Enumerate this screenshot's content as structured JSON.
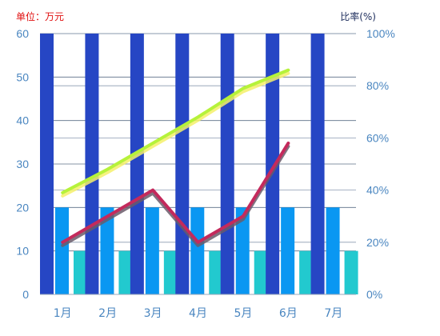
{
  "chart_data": {
    "type": "bar",
    "unit_left": "单位：万元",
    "unit_right": "比率(%)",
    "categories": [
      "1月",
      "2月",
      "3月",
      "4月",
      "5月",
      "6月",
      "7月"
    ],
    "ylim": [
      0,
      60
    ],
    "yticks": [
      0,
      10,
      20,
      30,
      40,
      50,
      60
    ],
    "y2lim": [
      0,
      100
    ],
    "y2ticks": [
      "0%",
      "20%",
      "40%",
      "60%",
      "80%",
      "100%"
    ],
    "bar_series": [
      {
        "values": [
          60,
          60,
          60,
          60,
          60,
          60,
          60
        ],
        "color": "#2646c4"
      },
      {
        "values": [
          20,
          20,
          20,
          20,
          20,
          20,
          20
        ],
        "color": "#0a97f2"
      },
      {
        "values": [
          10,
          10,
          10,
          10,
          10,
          10,
          10
        ],
        "color": "#22c9cf"
      }
    ],
    "line_series": [
      {
        "values": [
          39,
          48,
          58,
          68,
          79,
          86
        ],
        "color": "#b6f23a",
        "shadow": "#f5f06a"
      },
      {
        "values": [
          20,
          30,
          40,
          20,
          30,
          58
        ],
        "color": "#c42a5c",
        "shadow": "#6a5a6a"
      }
    ],
    "grid": true
  }
}
